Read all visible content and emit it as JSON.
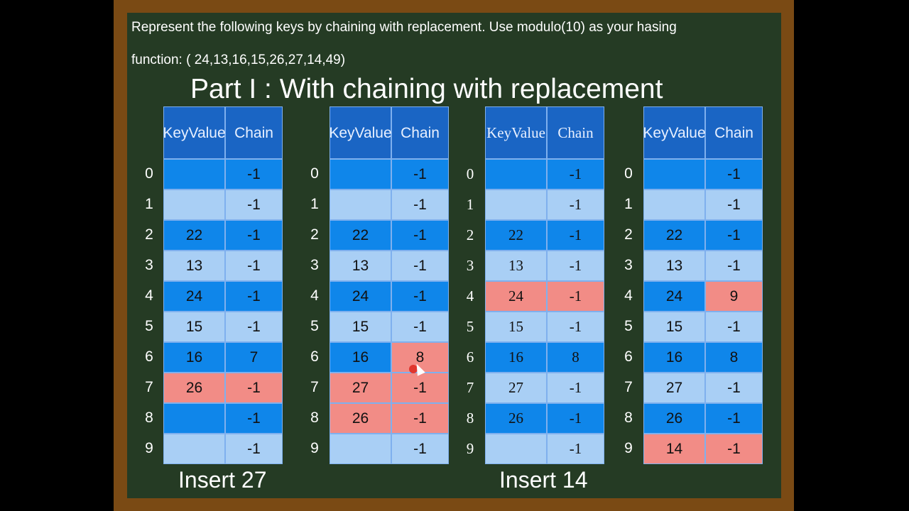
{
  "prompt": {
    "line1": "Represent the following keys by chaining with replacement. Use modulo(10) as your hasing",
    "line2": "function: ( 24,13,16,15,26,27,14,49)"
  },
  "title": "Part I : With chaining with replacement",
  "header": {
    "key_value_line1": "Key",
    "key_value_line2": "Value",
    "chain": "Chain"
  },
  "tables": [
    {
      "indices": [
        "0",
        "1",
        "2",
        "3",
        "4",
        "5",
        "6",
        "7",
        "8",
        "9"
      ],
      "rows": [
        {
          "key": "",
          "chain": "-1"
        },
        {
          "key": "",
          "chain": "-1"
        },
        {
          "key": "22",
          "chain": "-1"
        },
        {
          "key": "13",
          "chain": "-1"
        },
        {
          "key": "24",
          "chain": "-1"
        },
        {
          "key": "15",
          "chain": "-1"
        },
        {
          "key": "16",
          "chain": "7"
        },
        {
          "key": "26",
          "chain": "-1"
        },
        {
          "key": "",
          "chain": "-1"
        },
        {
          "key": "",
          "chain": "-1"
        }
      ]
    },
    {
      "indices": [
        "0",
        "1",
        "2",
        "3",
        "4",
        "5",
        "6",
        "7",
        "8",
        "9"
      ],
      "rows": [
        {
          "key": "",
          "chain": "-1"
        },
        {
          "key": "",
          "chain": "-1"
        },
        {
          "key": "22",
          "chain": "-1"
        },
        {
          "key": "13",
          "chain": "-1"
        },
        {
          "key": "24",
          "chain": "-1"
        },
        {
          "key": "15",
          "chain": "-1"
        },
        {
          "key": "16",
          "chain": "8"
        },
        {
          "key": "27",
          "chain": "-1"
        },
        {
          "key": "26",
          "chain": "-1"
        },
        {
          "key": "",
          "chain": "-1"
        }
      ]
    },
    {
      "indices": [
        "0",
        "1",
        "2",
        "3",
        "4",
        "5",
        "6",
        "7",
        "8",
        "9"
      ],
      "rows": [
        {
          "key": "",
          "chain": "-1"
        },
        {
          "key": "",
          "chain": "-1"
        },
        {
          "key": "22",
          "chain": "-1"
        },
        {
          "key": "13",
          "chain": "-1"
        },
        {
          "key": "24",
          "chain": "-1"
        },
        {
          "key": "15",
          "chain": "-1"
        },
        {
          "key": "16",
          "chain": "8"
        },
        {
          "key": "27",
          "chain": "-1"
        },
        {
          "key": "26",
          "chain": "-1"
        },
        {
          "key": "",
          "chain": "-1"
        }
      ]
    },
    {
      "indices": [
        "0",
        "1",
        "2",
        "3",
        "4",
        "5",
        "6",
        "7",
        "8",
        "9"
      ],
      "rows": [
        {
          "key": "",
          "chain": "-1"
        },
        {
          "key": "",
          "chain": "-1"
        },
        {
          "key": "22",
          "chain": "-1"
        },
        {
          "key": "13",
          "chain": "-1"
        },
        {
          "key": "24",
          "chain": "9"
        },
        {
          "key": "15",
          "chain": "-1"
        },
        {
          "key": "16",
          "chain": "8"
        },
        {
          "key": "27",
          "chain": "-1"
        },
        {
          "key": "26",
          "chain": "-1"
        },
        {
          "key": "14",
          "chain": "-1"
        }
      ]
    }
  ],
  "captions": {
    "left": "Insert 27",
    "right": "Insert 14"
  },
  "colors": {
    "header": "#1a65c4",
    "row_dark": "#0f86ea",
    "row_light": "#a9cff5",
    "highlight": "#f28c86",
    "board": "#253b24",
    "frame": "#7a4a14"
  }
}
